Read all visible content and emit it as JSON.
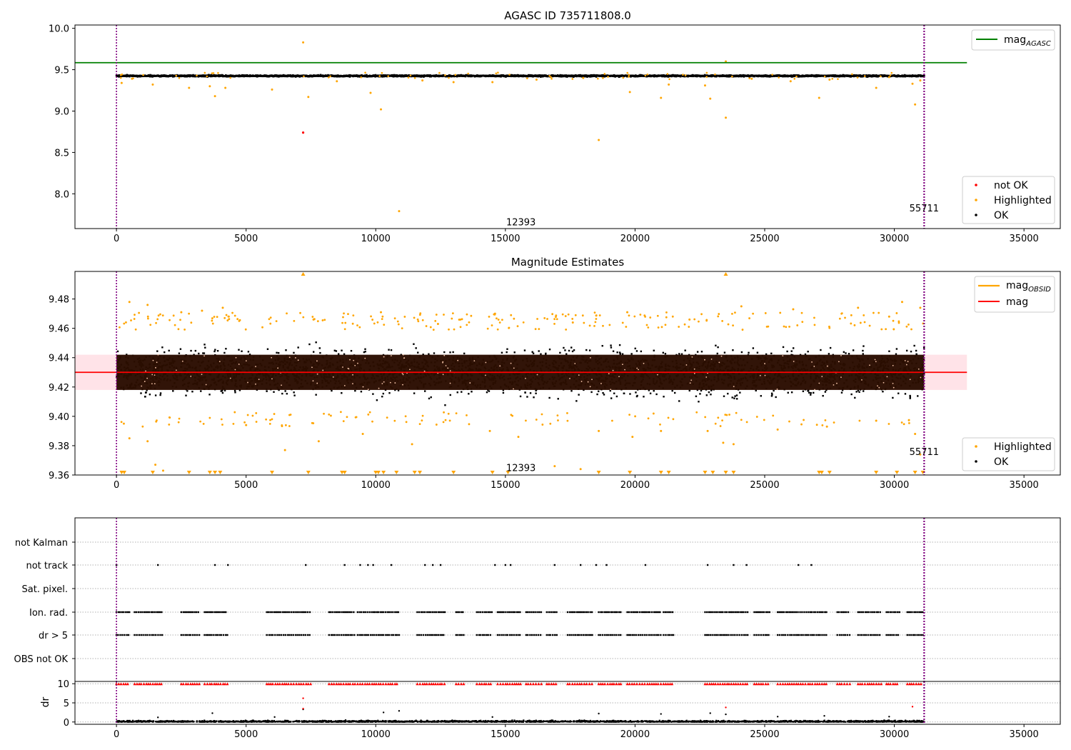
{
  "figure": {
    "background": "#ffffff"
  },
  "colors": {
    "ok": "#000000",
    "highlighted": "#ffa500",
    "not_ok": "#ff0000",
    "mag_agasc": "#008000",
    "mag": "#ff0000",
    "mag_obsid": "#ffa500",
    "mag_band": "#ffc0cb",
    "obs_line": "#800080",
    "mean_blob": "#2a0d00",
    "flag_grid": "#b0b0b0"
  },
  "chart_data": [
    {
      "id": "agasc",
      "type": "scatter",
      "title": "AGASC ID 735711808.0",
      "xlim": [
        -1600,
        36400
      ],
      "ylim": [
        7.58,
        10.04
      ],
      "xticks": [
        "0",
        "5000",
        "10000",
        "15000",
        "20000",
        "25000",
        "30000",
        "35000"
      ],
      "yticks": [
        "8.0",
        "8.5",
        "9.0",
        "9.5",
        "10.0"
      ],
      "hlines": [
        {
          "name": "mag_AGASC",
          "y": 9.585,
          "xmax": 32800
        }
      ],
      "vlines": [
        {
          "x": 0
        },
        {
          "x": 31150
        }
      ],
      "obs_labels": [
        {
          "text": "12393",
          "x": 15600,
          "y": 7.66
        },
        {
          "text": "55711",
          "x": 31150,
          "y": 7.83
        }
      ],
      "ok_band": {
        "x_range": [
          0,
          31150
        ],
        "center": 9.425,
        "spread": 0.018
      },
      "legend": {
        "lines_title": "mag",
        "lines_subscript": "AGASC",
        "markers": [
          "not OK",
          "Highlighted",
          "OK"
        ],
        "placement": [
          "upper-right",
          "lower-right"
        ]
      },
      "highlighted_points": [
        [
          7200,
          9.83
        ],
        [
          23500,
          9.6
        ],
        [
          10900,
          7.79
        ],
        [
          18600,
          8.65
        ],
        [
          23500,
          8.92
        ],
        [
          10200,
          9.02
        ],
        [
          3800,
          9.18
        ],
        [
          7400,
          9.17
        ],
        [
          9800,
          9.22
        ],
        [
          19800,
          9.23
        ],
        [
          22900,
          9.15
        ],
        [
          21000,
          9.16
        ],
        [
          27100,
          9.16
        ],
        [
          30800,
          9.08
        ],
        [
          6000,
          9.26
        ],
        [
          2800,
          9.28
        ],
        [
          29300,
          9.28
        ],
        [
          3600,
          9.3
        ],
        [
          1400,
          9.32
        ],
        [
          21300,
          9.32
        ],
        [
          22700,
          9.31
        ],
        [
          30700,
          9.33
        ],
        [
          600,
          9.39
        ],
        [
          200,
          9.34
        ],
        [
          13000,
          9.35
        ],
        [
          8500,
          9.36
        ],
        [
          11800,
          9.37
        ],
        [
          16200,
          9.38
        ],
        [
          24500,
          9.39
        ],
        [
          27500,
          9.38
        ],
        [
          29800,
          9.41
        ],
        [
          14500,
          9.35
        ],
        [
          4200,
          9.28
        ],
        [
          26000,
          9.36
        ],
        [
          31000,
          9.37
        ],
        [
          18000,
          9.4
        ]
      ],
      "not_ok_points": [
        [
          7200,
          8.74
        ]
      ]
    },
    {
      "id": "estimates",
      "type": "scatter",
      "title": "Magnitude Estimates",
      "xlim": [
        -1600,
        36400
      ],
      "ylim": [
        9.36,
        9.4988
      ],
      "xticks": [
        "0",
        "5000",
        "10000",
        "15000",
        "20000",
        "25000",
        "30000",
        "35000"
      ],
      "yticks": [
        "9.36",
        "9.38",
        "9.40",
        "9.42",
        "9.44",
        "9.46",
        "9.48"
      ],
      "hlines": [
        {
          "name": "mag",
          "y": 9.43,
          "xmax": 32800
        }
      ],
      "band": {
        "y_range": [
          9.418,
          9.442
        ],
        "xmax": 32800
      },
      "vlines": [
        {
          "x": 0
        },
        {
          "x": 31150
        }
      ],
      "obs_labels": [
        {
          "text": "12393",
          "x": 15600,
          "y": 9.365
        },
        {
          "text": "55711",
          "x": 31150,
          "y": 9.376
        }
      ],
      "ok_band": {
        "x_range": [
          0,
          31150
        ],
        "center": 9.43,
        "spread": 0.01
      },
      "core_band": {
        "y_range": [
          9.418,
          9.442
        ]
      },
      "legend": {
        "lines": [
          {
            "label": "mag",
            "subscript": "OBSID"
          },
          {
            "label": "mag"
          }
        ],
        "markers": [
          "Highlighted",
          "OK"
        ],
        "placement": [
          "upper-right",
          "lower-right"
        ]
      },
      "highlighted_points": [
        [
          500,
          9.385
        ],
        [
          1200,
          9.383
        ],
        [
          1500,
          9.367
        ],
        [
          1800,
          9.363
        ],
        [
          5000,
          9.394
        ],
        [
          6500,
          9.377
        ],
        [
          7800,
          9.383
        ],
        [
          9500,
          9.388
        ],
        [
          11400,
          9.381
        ],
        [
          14400,
          9.39
        ],
        [
          15500,
          9.386
        ],
        [
          16900,
          9.366
        ],
        [
          17900,
          9.364
        ],
        [
          18600,
          9.39
        ],
        [
          19900,
          9.386
        ],
        [
          21000,
          9.39
        ],
        [
          22800,
          9.39
        ],
        [
          23400,
          9.382
        ],
        [
          23800,
          9.381
        ],
        [
          25500,
          9.391
        ],
        [
          27400,
          9.393
        ],
        [
          29300,
          9.397
        ],
        [
          30800,
          9.388
        ],
        [
          31000,
          9.374
        ],
        [
          500,
          9.478
        ],
        [
          1200,
          9.476
        ],
        [
          3300,
          9.472
        ],
        [
          4100,
          9.474
        ],
        [
          10200,
          9.471
        ],
        [
          14600,
          9.47
        ],
        [
          19700,
          9.471
        ],
        [
          24100,
          9.475
        ],
        [
          26100,
          9.473
        ],
        [
          28600,
          9.474
        ],
        [
          30300,
          9.478
        ],
        [
          31000,
          9.474
        ],
        [
          2500,
          9.471
        ],
        [
          7600,
          9.466
        ],
        [
          12400,
          9.463
        ],
        [
          17600,
          9.464
        ],
        [
          22100,
          9.466
        ],
        [
          29800,
          9.468
        ]
      ],
      "edge_high": [
        [
          7200
        ],
        [
          23500
        ]
      ],
      "edge_low": [
        [
          200
        ],
        [
          300
        ],
        [
          1400
        ],
        [
          2800
        ],
        [
          3600
        ],
        [
          3800
        ],
        [
          4000
        ],
        [
          6000
        ],
        [
          7400
        ],
        [
          8700
        ],
        [
          8800
        ],
        [
          10000
        ],
        [
          10100
        ],
        [
          10300
        ],
        [
          10800
        ],
        [
          11500
        ],
        [
          11700
        ],
        [
          13000
        ],
        [
          14500
        ],
        [
          15100
        ],
        [
          18600
        ],
        [
          19800
        ],
        [
          21000
        ],
        [
          21300
        ],
        [
          22700
        ],
        [
          23000
        ],
        [
          23500
        ],
        [
          23800
        ],
        [
          27100
        ],
        [
          27200
        ],
        [
          27500
        ],
        [
          29300
        ],
        [
          30100
        ],
        [
          30800
        ],
        [
          31100
        ]
      ]
    },
    {
      "id": "flags",
      "type": "scatter",
      "categories": [
        "not Kalman",
        "not track",
        "Sat. pixel.",
        "Ion. rad.",
        "dr > 5",
        "OBS not OK"
      ],
      "xlim": [
        -1600,
        36400
      ],
      "vlines": [
        {
          "x": 0
        },
        {
          "x": 31150
        }
      ],
      "flag_x": {
        "not Kalman": [],
        "not track": [
          0,
          1600,
          3800,
          4300,
          7300,
          8800,
          9400,
          9700,
          9900,
          10600,
          11900,
          12200,
          12500,
          14600,
          15000,
          15200,
          16900,
          17900,
          18500,
          18900,
          20400,
          22800,
          23800,
          24300,
          26300,
          26800
        ],
        "Sat. pixel.": [],
        "Ion. rad.": [],
        "dr > 5": [],
        "OBS not OK": []
      },
      "dense_ranges": [
        [
          0,
          500
        ],
        [
          700,
          1800
        ],
        [
          2500,
          3200
        ],
        [
          3400,
          4300
        ],
        [
          5800,
          7500
        ],
        [
          8200,
          9200
        ],
        [
          9300,
          10900
        ],
        [
          11600,
          12700
        ],
        [
          13100,
          13400
        ],
        [
          13900,
          14500
        ],
        [
          14700,
          15600
        ],
        [
          15800,
          16400
        ],
        [
          16600,
          17000
        ],
        [
          17400,
          18400
        ],
        [
          18600,
          19500
        ],
        [
          19700,
          21000
        ],
        [
          21100,
          21500
        ],
        [
          22700,
          24400
        ],
        [
          24600,
          25200
        ],
        [
          25500,
          27400
        ],
        [
          27800,
          28300
        ],
        [
          28600,
          29500
        ],
        [
          29700,
          30200
        ],
        [
          30500,
          31100
        ]
      ]
    },
    {
      "id": "dr",
      "type": "scatter",
      "ylabel": "dr",
      "xlim": [
        -1600,
        36400
      ],
      "ylim": [
        -0.6,
        10.6
      ],
      "xticks": [
        "0",
        "5000",
        "10000",
        "15000",
        "20000",
        "25000",
        "30000",
        "35000"
      ],
      "yticks": [
        "0",
        "5",
        "10"
      ],
      "vlines": [
        {
          "x": 0
        },
        {
          "x": 31150
        }
      ],
      "capped_value": 10,
      "ok_outliers": [
        [
          3700,
          2.3
        ],
        [
          10300,
          2.5
        ],
        [
          10900,
          2.9
        ],
        [
          18600,
          2.2
        ],
        [
          21000,
          2.1
        ],
        [
          22900,
          2.3
        ],
        [
          27300,
          1.6
        ],
        [
          29800,
          1.4
        ],
        [
          7200,
          3.3
        ],
        [
          23500,
          2.0
        ],
        [
          1600,
          1.2
        ],
        [
          6100,
          1.3
        ],
        [
          14500,
          1.3
        ],
        [
          25500,
          1.4
        ]
      ],
      "not_ok_points": [
        [
          7200,
          6.2
        ],
        [
          7200,
          3.5
        ],
        [
          23500,
          3.8
        ],
        [
          30700,
          4.0
        ]
      ]
    }
  ]
}
